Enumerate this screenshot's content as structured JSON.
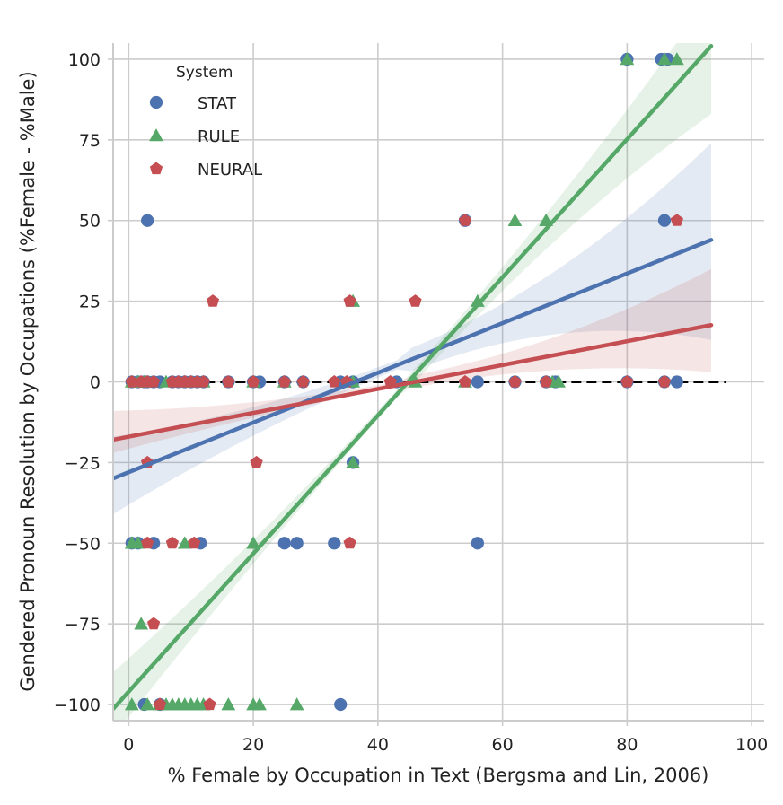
{
  "chart_data": {
    "type": "scatter",
    "title": "",
    "xlabel": "% Female by Occupation in Text (Bergsma and Lin, 2006)",
    "ylabel": "Gendered Pronoun Resolution by Occupations (%Female - %Male)",
    "xlim": [
      -2.5,
      102
    ],
    "ylim": [
      -105,
      105
    ],
    "x_ticks": [
      0,
      20,
      40,
      60,
      80,
      100
    ],
    "y_ticks": [
      -100,
      -75,
      -50,
      -25,
      0,
      25,
      50,
      75,
      100
    ],
    "x_tick_labels": [
      "0",
      "20",
      "40",
      "60",
      "80",
      "100"
    ],
    "y_tick_labels": [
      "−100",
      "−75",
      "−50",
      "−25",
      "0",
      "25",
      "50",
      "75",
      "100"
    ],
    "grid": true,
    "legend": {
      "title": "System",
      "placement": "top-left"
    },
    "reference_line": {
      "y": 0,
      "style": "dashed",
      "color": "#000000"
    },
    "series": [
      {
        "name": "STAT",
        "marker": "circle",
        "color": "#4C72B0",
        "points": [
          [
            0.5,
            0
          ],
          [
            1.5,
            0
          ],
          [
            2.5,
            0
          ],
          [
            3,
            0
          ],
          [
            4,
            0
          ],
          [
            5,
            0
          ],
          [
            7,
            0
          ],
          [
            8,
            0
          ],
          [
            9,
            0
          ],
          [
            10,
            0
          ],
          [
            11,
            0
          ],
          [
            12,
            0
          ],
          [
            16,
            0
          ],
          [
            20,
            0
          ],
          [
            21,
            0
          ],
          [
            25,
            0
          ],
          [
            28,
            0
          ],
          [
            34,
            0
          ],
          [
            36,
            0
          ],
          [
            43,
            0
          ],
          [
            56,
            0
          ],
          [
            62,
            0
          ],
          [
            67,
            0
          ],
          [
            68.5,
            0
          ],
          [
            80,
            0
          ],
          [
            86,
            0
          ],
          [
            88,
            0
          ],
          [
            3,
            50
          ],
          [
            54,
            50
          ],
          [
            86,
            50
          ],
          [
            80,
            100
          ],
          [
            85.5,
            100
          ],
          [
            86.5,
            100
          ],
          [
            36,
            -25
          ],
          [
            0.5,
            -50
          ],
          [
            1.5,
            -50
          ],
          [
            4,
            -50
          ],
          [
            11.5,
            -50
          ],
          [
            25,
            -50
          ],
          [
            27,
            -50
          ],
          [
            33,
            -50
          ],
          [
            56,
            -50
          ],
          [
            2.5,
            -100
          ],
          [
            5,
            -100
          ],
          [
            34,
            -100
          ]
        ],
        "fit": {
          "intercept": -28,
          "slope": 0.77,
          "x_range": [
            -2.5,
            93.5
          ],
          "ci_at_x_min": [
            -41,
            -17
          ],
          "ci_at_x_max": [
            13,
            74
          ]
        }
      },
      {
        "name": "RULE",
        "marker": "triangle",
        "color": "#55A868",
        "points": [
          [
            0.5,
            0
          ],
          [
            1.5,
            0
          ],
          [
            2.5,
            0
          ],
          [
            6,
            0
          ],
          [
            9,
            0
          ],
          [
            12,
            0
          ],
          [
            20,
            0
          ],
          [
            25,
            0
          ],
          [
            36,
            0
          ],
          [
            46,
            0
          ],
          [
            54,
            0
          ],
          [
            68,
            0
          ],
          [
            69,
            0
          ],
          [
            80,
            100
          ],
          [
            86,
            100
          ],
          [
            88,
            100
          ],
          [
            62,
            50
          ],
          [
            67,
            50
          ],
          [
            36,
            25
          ],
          [
            56,
            25
          ],
          [
            36,
            -25
          ],
          [
            0.5,
            -50
          ],
          [
            1.5,
            -50
          ],
          [
            9,
            -50
          ],
          [
            20,
            -50
          ],
          [
            2,
            -75
          ],
          [
            0.5,
            -100
          ],
          [
            3,
            -100
          ],
          [
            5,
            -100
          ],
          [
            6,
            -100
          ],
          [
            7,
            -100
          ],
          [
            8,
            -100
          ],
          [
            9,
            -100
          ],
          [
            10,
            -100
          ],
          [
            11,
            -100
          ],
          [
            12,
            -100
          ],
          [
            16,
            -100
          ],
          [
            20,
            -100
          ],
          [
            21,
            -100
          ],
          [
            27,
            -100
          ]
        ],
        "fit": {
          "intercept": -96,
          "slope": 2.14,
          "x_range": [
            -2.5,
            93.5
          ],
          "ci_at_x_min": [
            -110,
            -90
          ],
          "ci_at_x_max": [
            83,
            120
          ]
        }
      },
      {
        "name": "NEURAL",
        "marker": "pentagon",
        "color": "#C44E52",
        "points": [
          [
            0.5,
            0
          ],
          [
            2,
            0
          ],
          [
            3,
            0
          ],
          [
            4,
            0
          ],
          [
            7,
            0
          ],
          [
            8,
            0
          ],
          [
            9,
            0
          ],
          [
            10,
            0
          ],
          [
            11,
            0
          ],
          [
            12,
            0
          ],
          [
            16,
            0
          ],
          [
            20,
            0
          ],
          [
            25,
            0
          ],
          [
            28,
            0
          ],
          [
            33,
            0
          ],
          [
            35,
            0
          ],
          [
            42,
            0
          ],
          [
            54,
            0
          ],
          [
            62,
            0
          ],
          [
            67,
            0
          ],
          [
            80,
            0
          ],
          [
            86,
            0
          ],
          [
            54,
            50
          ],
          [
            88,
            50
          ],
          [
            13.5,
            25
          ],
          [
            35.5,
            25
          ],
          [
            46,
            25
          ],
          [
            3,
            -25
          ],
          [
            20.5,
            -25
          ],
          [
            3,
            -50
          ],
          [
            7,
            -50
          ],
          [
            10.5,
            -50
          ],
          [
            35.5,
            -50
          ],
          [
            4,
            -75
          ],
          [
            5,
            -100
          ],
          [
            13,
            -100
          ]
        ],
        "fit": {
          "intercept": -17,
          "slope": 0.37,
          "x_range": [
            -2.5,
            93.5
          ],
          "ci_at_x_min": [
            -22,
            -9
          ],
          "ci_at_x_max": [
            3,
            35
          ]
        }
      }
    ]
  }
}
